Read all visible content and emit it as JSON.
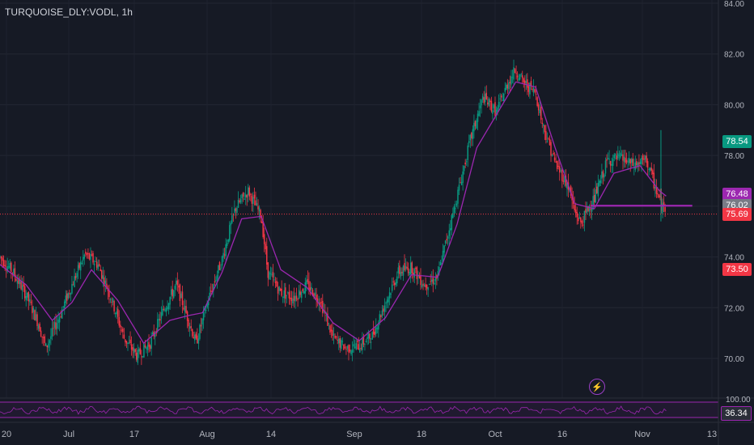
{
  "header": {
    "ticker": "TURQUOISE_DLY:VODL, 1h"
  },
  "indicator_icon": "bolt-icon",
  "price_tags": [
    {
      "value": "78.54",
      "color": "#089981",
      "y": 78.54
    },
    {
      "value": "76.48",
      "color": "#9c27b0",
      "y": 76.48
    },
    {
      "value": "76.02",
      "color": "#787b86",
      "y": 76.02
    },
    {
      "value": "75.69",
      "color": "#f23645",
      "y": 75.69
    },
    {
      "value": "73.50",
      "color": "#f23645",
      "y": 73.5
    }
  ],
  "rsi_tag": {
    "value": "36.34",
    "color": "#2a2e39"
  },
  "rsi_top_label": "100.00",
  "chart_data": {
    "type": "candlestick",
    "title": "TURQUOISE_DLY:VODL, 1h",
    "y_ticks": [
      "70.00",
      "72.00",
      "74.00",
      "76.00",
      "78.00",
      "80.00",
      "82.00",
      "84.00"
    ],
    "ylim": [
      69.0,
      84.0
    ],
    "x_labels": [
      "20",
      "Jul",
      "17",
      "Aug",
      "14",
      "Sep",
      "18",
      "Oct",
      "16",
      "Nov",
      "13"
    ],
    "grid": true,
    "price_path": [
      [
        0,
        74.0
      ],
      [
        2,
        73.4
      ],
      [
        4,
        72.5
      ],
      [
        6,
        71.3
      ],
      [
        7,
        70.4
      ],
      [
        9,
        71.6
      ],
      [
        11,
        72.9
      ],
      [
        13,
        74.1
      ],
      [
        15,
        73.7
      ],
      [
        17,
        72.4
      ],
      [
        19,
        70.8
      ],
      [
        21,
        70.1
      ],
      [
        23,
        70.6
      ],
      [
        25,
        71.9
      ],
      [
        27,
        72.9
      ],
      [
        29,
        71.4
      ],
      [
        30,
        70.6
      ],
      [
        32,
        72.4
      ],
      [
        34,
        73.9
      ],
      [
        36,
        75.9
      ],
      [
        38,
        76.6
      ],
      [
        40,
        75.6
      ],
      [
        41,
        73.4
      ],
      [
        43,
        72.6
      ],
      [
        45,
        72.4
      ],
      [
        47,
        72.9
      ],
      [
        49,
        72.3
      ],
      [
        51,
        70.8
      ],
      [
        53,
        70.4
      ],
      [
        55,
        70.5
      ],
      [
        57,
        70.9
      ],
      [
        59,
        72.2
      ],
      [
        61,
        73.4
      ],
      [
        63,
        73.6
      ],
      [
        65,
        72.9
      ],
      [
        67,
        73.2
      ],
      [
        68,
        74.3
      ],
      [
        70,
        76.4
      ],
      [
        72,
        78.6
      ],
      [
        74,
        80.3
      ],
      [
        76,
        79.7
      ],
      [
        78,
        81.0
      ],
      [
        79,
        81.4
      ],
      [
        80,
        80.9
      ],
      [
        82,
        80.5
      ],
      [
        83,
        79.3
      ],
      [
        85,
        77.7
      ],
      [
        87,
        76.8
      ],
      [
        88,
        75.8
      ],
      [
        89,
        75.3
      ],
      [
        90,
        75.9
      ],
      [
        91,
        76.3
      ],
      [
        93,
        77.8
      ],
      [
        95,
        77.9
      ],
      [
        97,
        77.6
      ],
      [
        99,
        77.8
      ],
      [
        100,
        77.0
      ],
      [
        101,
        76.2
      ],
      [
        101.5,
        75.9
      ],
      [
        102,
        76.0
      ]
    ],
    "ema_path": [
      [
        0,
        73.7
      ],
      [
        4,
        72.9
      ],
      [
        8,
        71.5
      ],
      [
        11,
        72.2
      ],
      [
        14,
        73.5
      ],
      [
        18,
        72.3
      ],
      [
        22,
        70.6
      ],
      [
        26,
        71.5
      ],
      [
        29,
        71.7
      ],
      [
        31,
        71.8
      ],
      [
        34,
        73.4
      ],
      [
        37,
        75.5
      ],
      [
        40,
        75.6
      ],
      [
        43,
        73.5
      ],
      [
        47,
        72.8
      ],
      [
        51,
        71.4
      ],
      [
        55,
        70.7
      ],
      [
        59,
        71.6
      ],
      [
        63,
        73.3
      ],
      [
        67,
        73.2
      ],
      [
        70,
        75.3
      ],
      [
        73,
        78.3
      ],
      [
        76,
        79.6
      ],
      [
        79,
        80.9
      ],
      [
        82,
        80.7
      ],
      [
        85,
        78.3
      ],
      [
        88,
        76.1
      ],
      [
        91,
        75.9
      ],
      [
        94,
        77.3
      ],
      [
        98,
        77.6
      ],
      [
        101,
        76.6
      ],
      [
        102,
        76.4
      ]
    ],
    "level_line": {
      "value": 76.02,
      "from": 90.5,
      "to": 106
    },
    "last_close": 75.69,
    "rsi": {
      "upper": 100.0,
      "lower": 0.0,
      "last": 36.34
    }
  }
}
